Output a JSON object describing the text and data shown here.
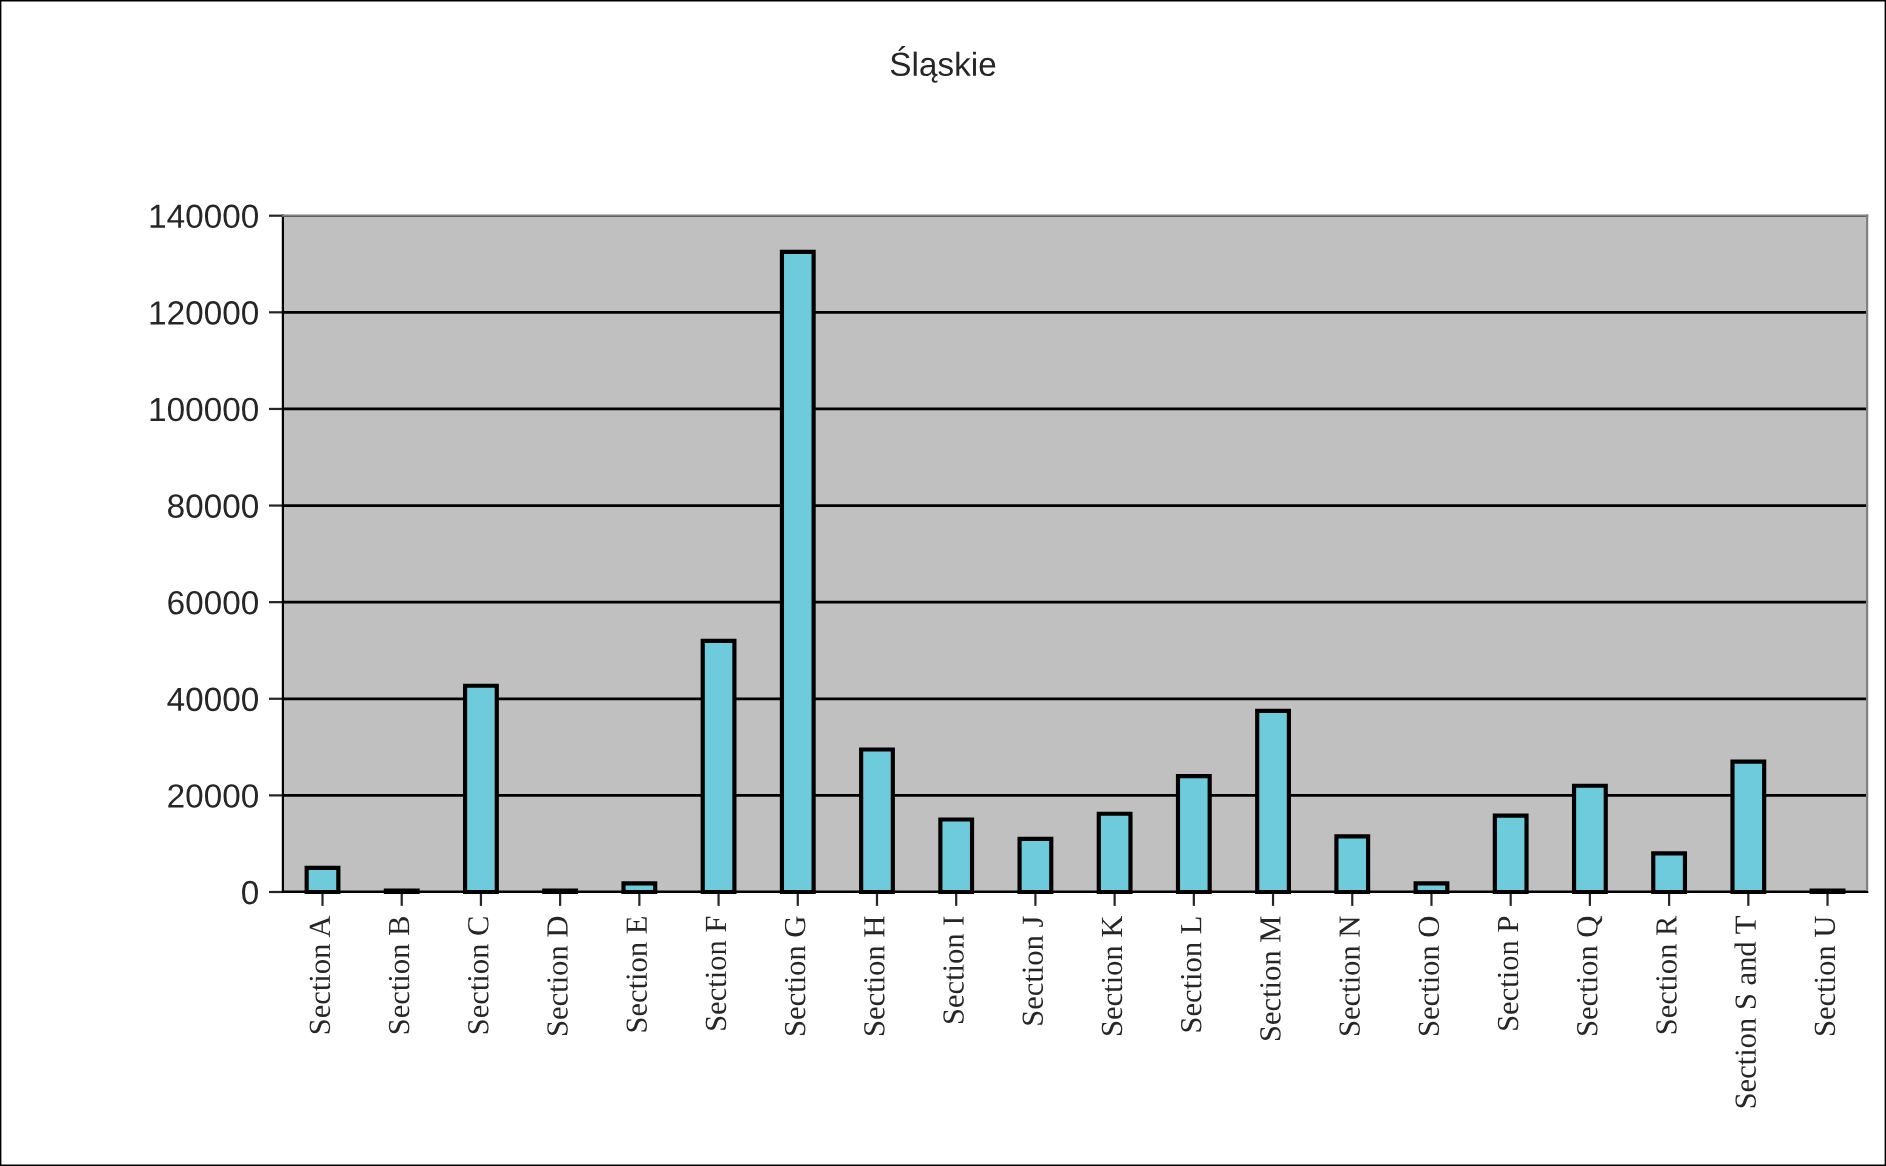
{
  "chart_data": {
    "type": "bar",
    "title": "Śląskie",
    "categories": [
      "Section A",
      "Section B",
      "Section C",
      "Section D",
      "Section E",
      "Section F",
      "Section G",
      "Section H",
      "Section I",
      "Section J",
      "Section K",
      "Section L",
      "Section M",
      "Section N",
      "Section O",
      "Section P",
      "Section Q",
      "Section R",
      "Section S and T",
      "Section U"
    ],
    "values": [
      5000,
      300,
      42700,
      300,
      1800,
      52000,
      132500,
      29500,
      15000,
      11000,
      16200,
      24000,
      37500,
      11500,
      1800,
      15800,
      22000,
      8000,
      27000,
      300
    ],
    "color": "#6dcbdc",
    "ylim": [
      0,
      140000
    ],
    "yticks": [
      0,
      20000,
      40000,
      60000,
      80000,
      100000,
      120000,
      140000
    ],
    "grid": "y"
  }
}
